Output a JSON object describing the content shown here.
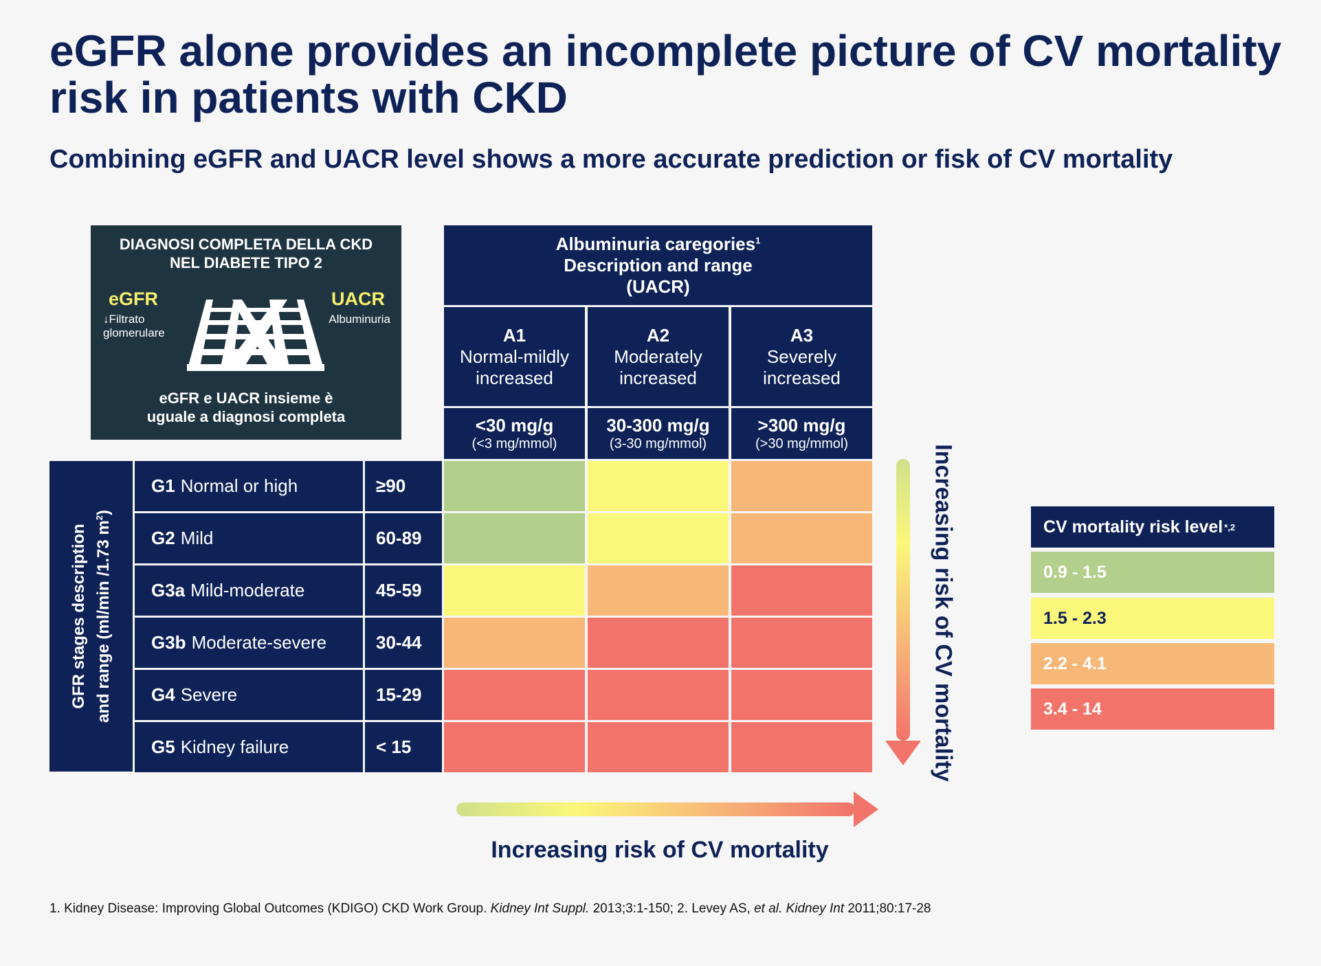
{
  "title": "eGFR alone provides an incomplete picture of CV mortality risk in patients with CKD",
  "subtitle": "Combining eGFR and UACR level shows a more accurate prediction or fisk of CV mortality",
  "diagnosis_box": {
    "title_line1": "DIAGNOSI COMPLETA DELLA CKD",
    "title_line2": "NEL DIABETE TIPO 2",
    "egfr_label": "eGFR",
    "egfr_sub_line1": "↓Filtrato",
    "egfr_sub_line2": "glomerulare",
    "uacr_label": "UACR",
    "uacr_sub": "Albuminuria",
    "footer_line1": "eGFR e UACR insieme è",
    "footer_line2": "uguale a diagnosi completa"
  },
  "albuminuria_header": {
    "line1": "Albuminuria caregories",
    "line1_sup": "1",
    "line2": "Description and range",
    "line3": "(UACR)"
  },
  "categories": [
    {
      "code": "A1",
      "desc_line1": "Normal-mildly",
      "desc_line2": "increased",
      "range": "<30 mg/g",
      "range_sub": "(<3 mg/mmol)"
    },
    {
      "code": "A2",
      "desc_line1": "Moderately",
      "desc_line2": "increased",
      "range": "30-300 mg/g",
      "range_sub": "(3-30 mg/mmol)"
    },
    {
      "code": "A3",
      "desc_line1": "Severely",
      "desc_line2": "increased",
      "range": ">300 mg/g",
      "range_sub": "(>30 mg/mmol)"
    }
  ],
  "gfr_side_label": {
    "line1": "GFR stages description",
    "line2": "and range (ml/min /1.73 m",
    "line2_sup": "2",
    "line2_end": ")"
  },
  "gfr_stages": [
    {
      "code": "G1",
      "desc": "Normal or high",
      "range": "≥90",
      "risk": [
        1,
        2,
        3
      ]
    },
    {
      "code": "G2",
      "desc": "Mild",
      "range": "60-89",
      "risk": [
        1,
        2,
        3
      ]
    },
    {
      "code": "G3a",
      "desc": "Mild-moderate",
      "range": "45-59",
      "risk": [
        2,
        3,
        4
      ]
    },
    {
      "code": "G3b",
      "desc": "Moderate-severe",
      "range": "30-44",
      "risk": [
        3,
        4,
        4
      ]
    },
    {
      "code": "G4",
      "desc": "Severe",
      "range": "15-29",
      "risk": [
        4,
        4,
        4
      ]
    },
    {
      "code": "G5",
      "desc": "Kidney failure",
      "range": "< 15",
      "risk": [
        4,
        4,
        4
      ]
    }
  ],
  "risk_colors": {
    "1": "#b2cf8b",
    "2": "#fbf77a",
    "3": "#f7b777",
    "4": "#f2736a"
  },
  "navy": "#0e2257",
  "vertical_arrow_label": "Increasing risk of CV mortality",
  "horizontal_arrow_label": "Increasing risk of CV mortality",
  "legend": {
    "title": "CV mortality risk level",
    "title_sup": "*,2",
    "items": [
      {
        "label": "0.9 - 1.5",
        "level": 1,
        "text_color": "#ffffff"
      },
      {
        "label": "1.5 - 2.3",
        "level": 2,
        "text_color": "#0e2257"
      },
      {
        "label": "2.2 - 4.1",
        "level": 3,
        "text_color": "#ffffff"
      },
      {
        "label": "3.4 - 14",
        "level": 4,
        "text_color": "#ffffff"
      }
    ]
  },
  "footnote": {
    "part1": "1. Kidney Disease: Improving Global Outcomes (KDIGO) CKD Work Group. ",
    "part2_italic": "Kidney Int Suppl.",
    "part3": " 2013;3:1-150; 2. Levey AS, ",
    "part4_italic": "et al. Kidney Int",
    "part5": " 2011;80:17-28"
  }
}
